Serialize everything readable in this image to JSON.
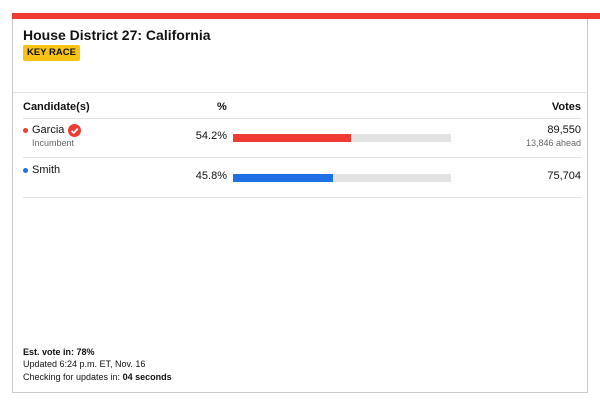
{
  "header": {
    "title": "House District 27: California",
    "badge": "KEY RACE"
  },
  "table": {
    "columns": [
      "Candidate(s)",
      "%",
      "Votes"
    ],
    "xlim": [
      0,
      100
    ],
    "rows": [
      {
        "name": "Garcia",
        "note": "Incumbent",
        "color": "#ef3b33",
        "pct": {
          "value": 54.2,
          "label": "54.2%"
        },
        "votes": "89,550",
        "lead": "13,846 ahead",
        "winner": true
      },
      {
        "name": "Smith",
        "color": "#1f6fe5",
        "pct": {
          "value": 45.8,
          "label": "45.8%"
        },
        "votes": "75,704",
        "winner": false
      }
    ]
  },
  "footer": {
    "est": "Est. vote in: 78%",
    "updated": "Updated 6:24 p.m. ET, Nov. 16",
    "checking": "Checking for updates in:",
    "countdown": "04 seconds"
  }
}
